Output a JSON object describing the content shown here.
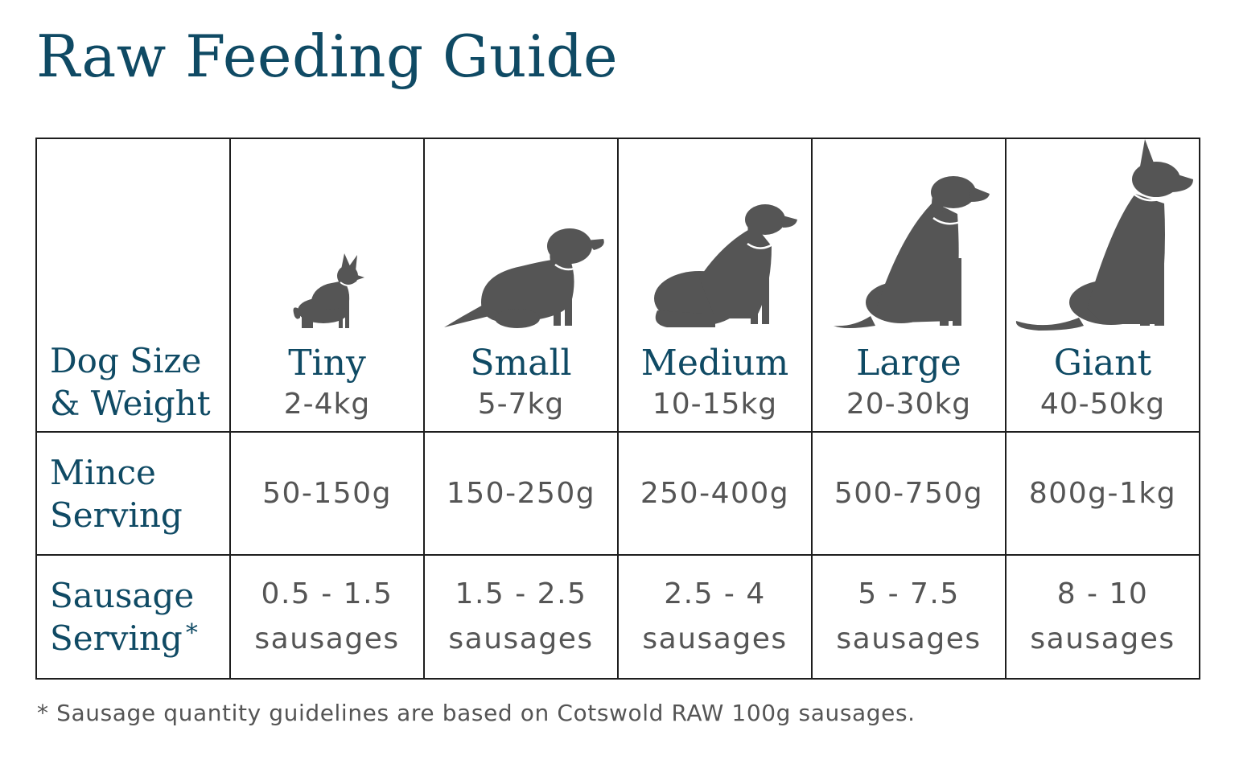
{
  "title": "Raw Feeding Guide",
  "table": {
    "row_labels": {
      "size": [
        "Dog Size",
        "& Weight"
      ],
      "mince": [
        "Mince",
        "Serving"
      ],
      "sausage": [
        "Sausage",
        "Serving"
      ],
      "sausage_mark": "*"
    },
    "sizes": [
      {
        "name": "Tiny",
        "weight": "2-4kg",
        "mince": "50-150g",
        "sausage_qty": "0.5 - 1.5",
        "sausage_unit": "sausages",
        "icon": "tiny-dog-icon"
      },
      {
        "name": "Small",
        "weight": "5-7kg",
        "mince": "150-250g",
        "sausage_qty": "1.5 - 2.5",
        "sausage_unit": "sausages",
        "icon": "small-dog-icon"
      },
      {
        "name": "Medium",
        "weight": "10-15kg",
        "mince": "250-400g",
        "sausage_qty": "2.5 - 4",
        "sausage_unit": "sausages",
        "icon": "medium-dog-icon"
      },
      {
        "name": "Large",
        "weight": "20-30kg",
        "mince": "500-750g",
        "sausage_qty": "5 - 7.5",
        "sausage_unit": "sausages",
        "icon": "large-dog-icon"
      },
      {
        "name": "Giant",
        "weight": "40-50kg",
        "mince": "800g-1kg",
        "sausage_qty": "8 - 10",
        "sausage_unit": "sausages",
        "icon": "giant-dog-icon"
      }
    ]
  },
  "footnote": "* Sausage quantity guidelines are based on Cotswold RAW 100g sausages.",
  "colors": {
    "heading": "#0f4a64",
    "text": "#555555",
    "dog": "#555555",
    "border": "#1e1e1e"
  }
}
